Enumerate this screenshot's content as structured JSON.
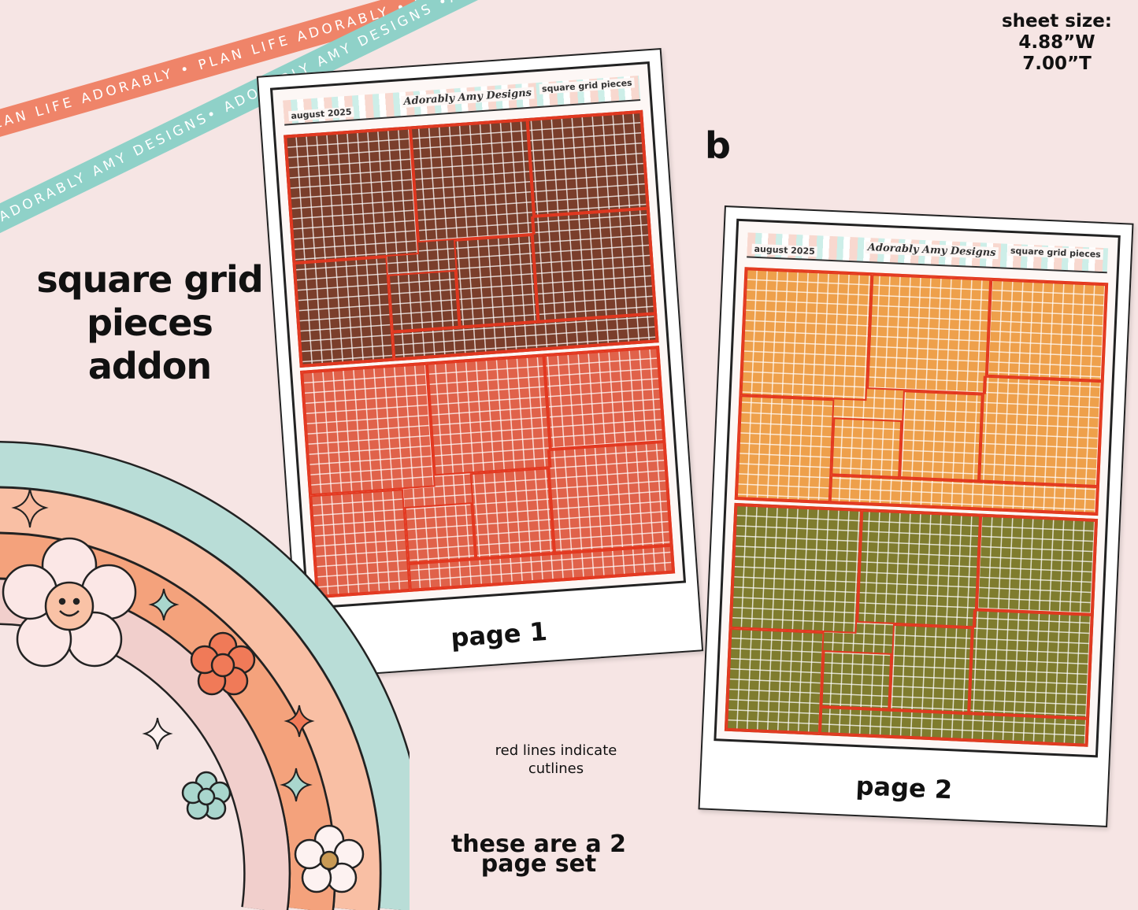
{
  "ribbons": {
    "orange_text": "PLAN LIFE ADORABLY • PLAN LIFE ADORABLY • PLAN LIFE ADO",
    "teal_text": "ADORABLY AMY DESIGNS• ADORABLY AMY DESIGNS •ADORABLY"
  },
  "title": {
    "line1": "square grid",
    "line2": "pieces",
    "line3": "addon"
  },
  "sheet_size": {
    "label": "sheet size:",
    "width": "4.88”W",
    "height": "7.00”T"
  },
  "variant_letter": "b",
  "note": {
    "line1": "red lines indicate",
    "line2": "cutlines"
  },
  "set_note": {
    "line1": "these are a 2",
    "line2": "page set"
  },
  "pages": [
    {
      "header_month": "august 2025",
      "header_brand": "Adorably Amy Designs",
      "header_title": "square grid pieces",
      "caption": "page 1",
      "colors": [
        "#7a3e2b",
        "#e0624a"
      ]
    },
    {
      "header_month": "august 2025",
      "header_brand": "Adorably Amy Designs",
      "header_title": "square grid pieces",
      "caption": "page 2",
      "colors": [
        "#eea04b",
        "#7f7c2e"
      ]
    }
  ],
  "colors": {
    "background": "#f6e5e4",
    "cutline": "#e3371f",
    "rainbow_teal": "#b9ddd7",
    "rainbow_peach": "#f9bfa4",
    "rainbow_orange": "#f4a27c",
    "rainbow_pink": "#f1cfcc"
  }
}
